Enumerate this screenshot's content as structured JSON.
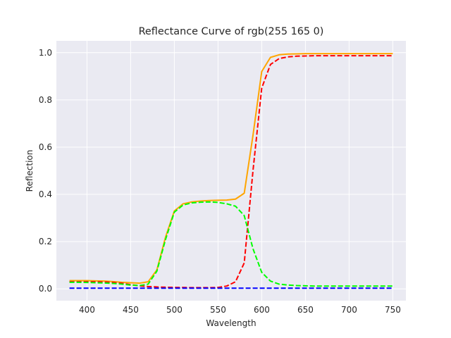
{
  "chart_data": {
    "type": "line",
    "title": "Reflectance Curve of rgb(255 165 0)",
    "xlabel": "Wavelength",
    "ylabel": "Reflection",
    "xlim": [
      365,
      765
    ],
    "ylim": [
      -0.05,
      1.05
    ],
    "xticks": [
      400,
      450,
      500,
      550,
      600,
      650,
      700,
      750
    ],
    "yticks": [
      0.0,
      0.2,
      0.4,
      0.6,
      0.8,
      1.0
    ],
    "ytick_labels": [
      "0.0",
      "0.2",
      "0.4",
      "0.6",
      "0.8",
      "1.0"
    ],
    "grid": true,
    "style": "seaborn-darkgrid",
    "colors": {
      "plot_background": "#eaeaf2",
      "grid": "#ffffff",
      "text": "#262626",
      "overall": "#ffa500",
      "red": "#ff0000",
      "green": "#00ff00",
      "blue": "#0000ff"
    },
    "x": [
      380,
      390,
      400,
      410,
      420,
      430,
      440,
      450,
      460,
      470,
      480,
      490,
      500,
      510,
      520,
      530,
      540,
      550,
      560,
      570,
      580,
      590,
      600,
      610,
      620,
      630,
      640,
      650,
      660,
      670,
      680,
      690,
      700,
      710,
      720,
      730,
      740,
      750
    ],
    "series": [
      {
        "key": "overall",
        "dashed": false,
        "values": [
          0.035,
          0.035,
          0.035,
          0.034,
          0.033,
          0.031,
          0.028,
          0.026,
          0.024,
          0.03,
          0.08,
          0.22,
          0.33,
          0.36,
          0.368,
          0.372,
          0.374,
          0.375,
          0.376,
          0.38,
          0.405,
          0.65,
          0.92,
          0.98,
          0.991,
          0.994,
          0.995,
          0.996,
          0.996,
          0.996,
          0.996,
          0.996,
          0.996,
          0.996,
          0.996,
          0.996,
          0.996,
          0.996
        ]
      },
      {
        "key": "red",
        "dashed": true,
        "values": [
          0.03,
          0.03,
          0.03,
          0.03,
          0.029,
          0.027,
          0.024,
          0.018,
          0.013,
          0.01,
          0.008,
          0.007,
          0.006,
          0.006,
          0.005,
          0.005,
          0.005,
          0.006,
          0.012,
          0.03,
          0.11,
          0.5,
          0.85,
          0.95,
          0.975,
          0.982,
          0.985,
          0.986,
          0.987,
          0.987,
          0.987,
          0.987,
          0.987,
          0.987,
          0.987,
          0.987,
          0.987,
          0.987
        ]
      },
      {
        "key": "green",
        "dashed": true,
        "values": [
          0.028,
          0.028,
          0.027,
          0.026,
          0.025,
          0.023,
          0.02,
          0.016,
          0.014,
          0.02,
          0.075,
          0.21,
          0.325,
          0.355,
          0.364,
          0.367,
          0.368,
          0.366,
          0.36,
          0.35,
          0.31,
          0.17,
          0.07,
          0.033,
          0.02,
          0.016,
          0.014,
          0.013,
          0.012,
          0.012,
          0.012,
          0.012,
          0.012,
          0.012,
          0.012,
          0.012,
          0.012,
          0.012
        ]
      },
      {
        "key": "blue",
        "dashed": true,
        "values": [
          0.003,
          0.003,
          0.003,
          0.003,
          0.003,
          0.003,
          0.003,
          0.003,
          0.003,
          0.003,
          0.003,
          0.003,
          0.003,
          0.003,
          0.003,
          0.003,
          0.003,
          0.003,
          0.003,
          0.003,
          0.003,
          0.003,
          0.003,
          0.003,
          0.003,
          0.003,
          0.003,
          0.003,
          0.003,
          0.003,
          0.003,
          0.003,
          0.003,
          0.003,
          0.003,
          0.003,
          0.003,
          0.003
        ]
      }
    ]
  }
}
